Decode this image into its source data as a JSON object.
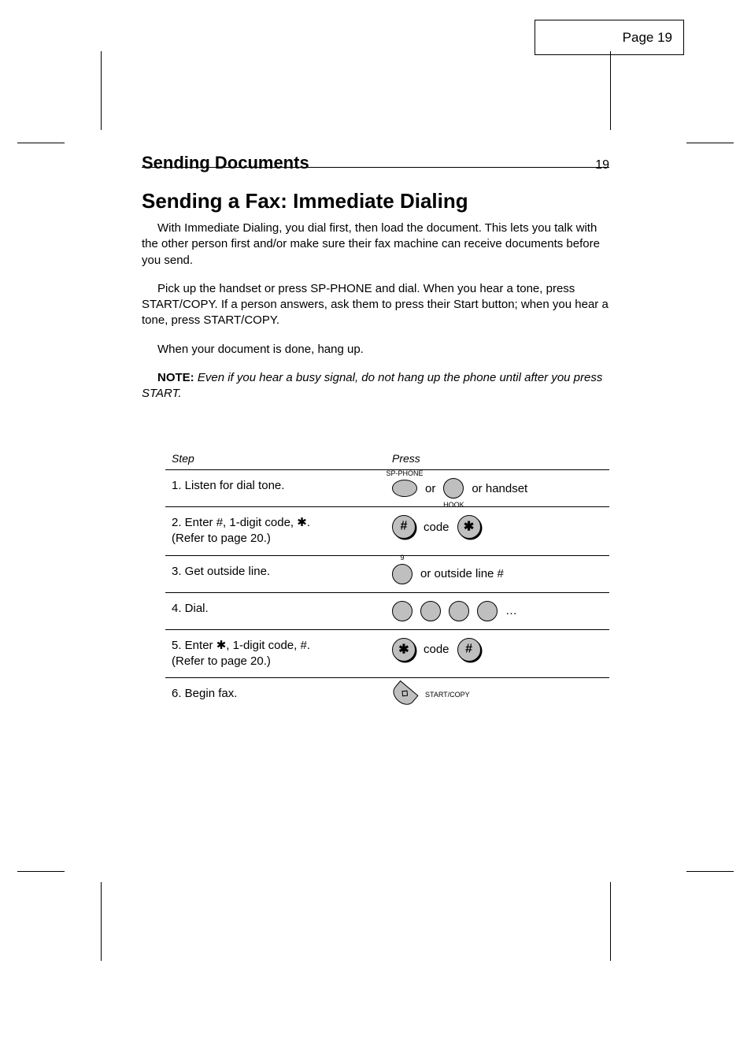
{
  "cropbox_label": "Page 19",
  "header": {
    "title": "Sending Documents",
    "page_no": "19"
  },
  "section_title": "Sending a Fax: Immediate Dialing",
  "paragraphs": [
    "With Immediate Dialing, you dial first, then load the document. This lets you talk with the other person first and/or make sure their fax machine can receive documents before you send.",
    "Pick up the handset or press SP-PHONE and dial. When you hear a tone, press START/COPY. If a person answers, ask them to press their Start button; when you hear a tone, press START/COPY.",
    "When your document is done, hang up."
  ],
  "paragraph_note": "Even if you hear a busy signal, do not hang up the phone until after you press START.",
  "note_label": "NOTE:",
  "table": {
    "headers": [
      "Step",
      "Press"
    ],
    "rows": [
      {
        "step": "1. Listen for dial tone.",
        "keys": [
          {
            "shape": "oval",
            "above": "SP-PHONE",
            "name": "sp-phone-key"
          },
          {
            "text": "or"
          },
          {
            "shape": "round",
            "below": "HOOK",
            "name": "hook-key"
          },
          {
            "text": "or handset"
          }
        ]
      },
      {
        "step": "2. Enter #, 1-digit code, ✱.\n(Refer to page 20.)",
        "keys": [
          {
            "shape": "round-lg",
            "glyph": "#",
            "shadow": true,
            "name": "hash-key"
          },
          {
            "text": "code"
          },
          {
            "shape": "round-lg",
            "glyph": "✱",
            "shadow": true,
            "name": "star-key"
          }
        ]
      },
      {
        "step": "3. Get outside line.",
        "keys": [
          {
            "shape": "round",
            "above": "9",
            "name": "nine-key"
          },
          {
            "text": "or outside line #"
          }
        ]
      },
      {
        "step": "4. Dial.",
        "keys": [
          {
            "shape": "round",
            "name": "digit-key-1"
          },
          {
            "shape": "round",
            "name": "digit-key-2"
          },
          {
            "shape": "round",
            "name": "digit-key-3"
          },
          {
            "shape": "round",
            "name": "digit-key-4"
          },
          {
            "text": "…"
          }
        ]
      },
      {
        "step": "5. Enter ✱, 1-digit code, #.\n(Refer to page 20.)",
        "keys": [
          {
            "shape": "round-lg",
            "glyph": "✱",
            "shadow": true,
            "name": "star-key-2"
          },
          {
            "text": "code"
          },
          {
            "shape": "round-lg",
            "glyph": "#",
            "shadow": true,
            "name": "hash-key-2"
          }
        ]
      },
      {
        "step": "6. Begin fax.",
        "keys": [
          {
            "shape": "start",
            "name": "start-key"
          },
          {
            "text_small": "START/COPY"
          }
        ]
      }
    ]
  }
}
